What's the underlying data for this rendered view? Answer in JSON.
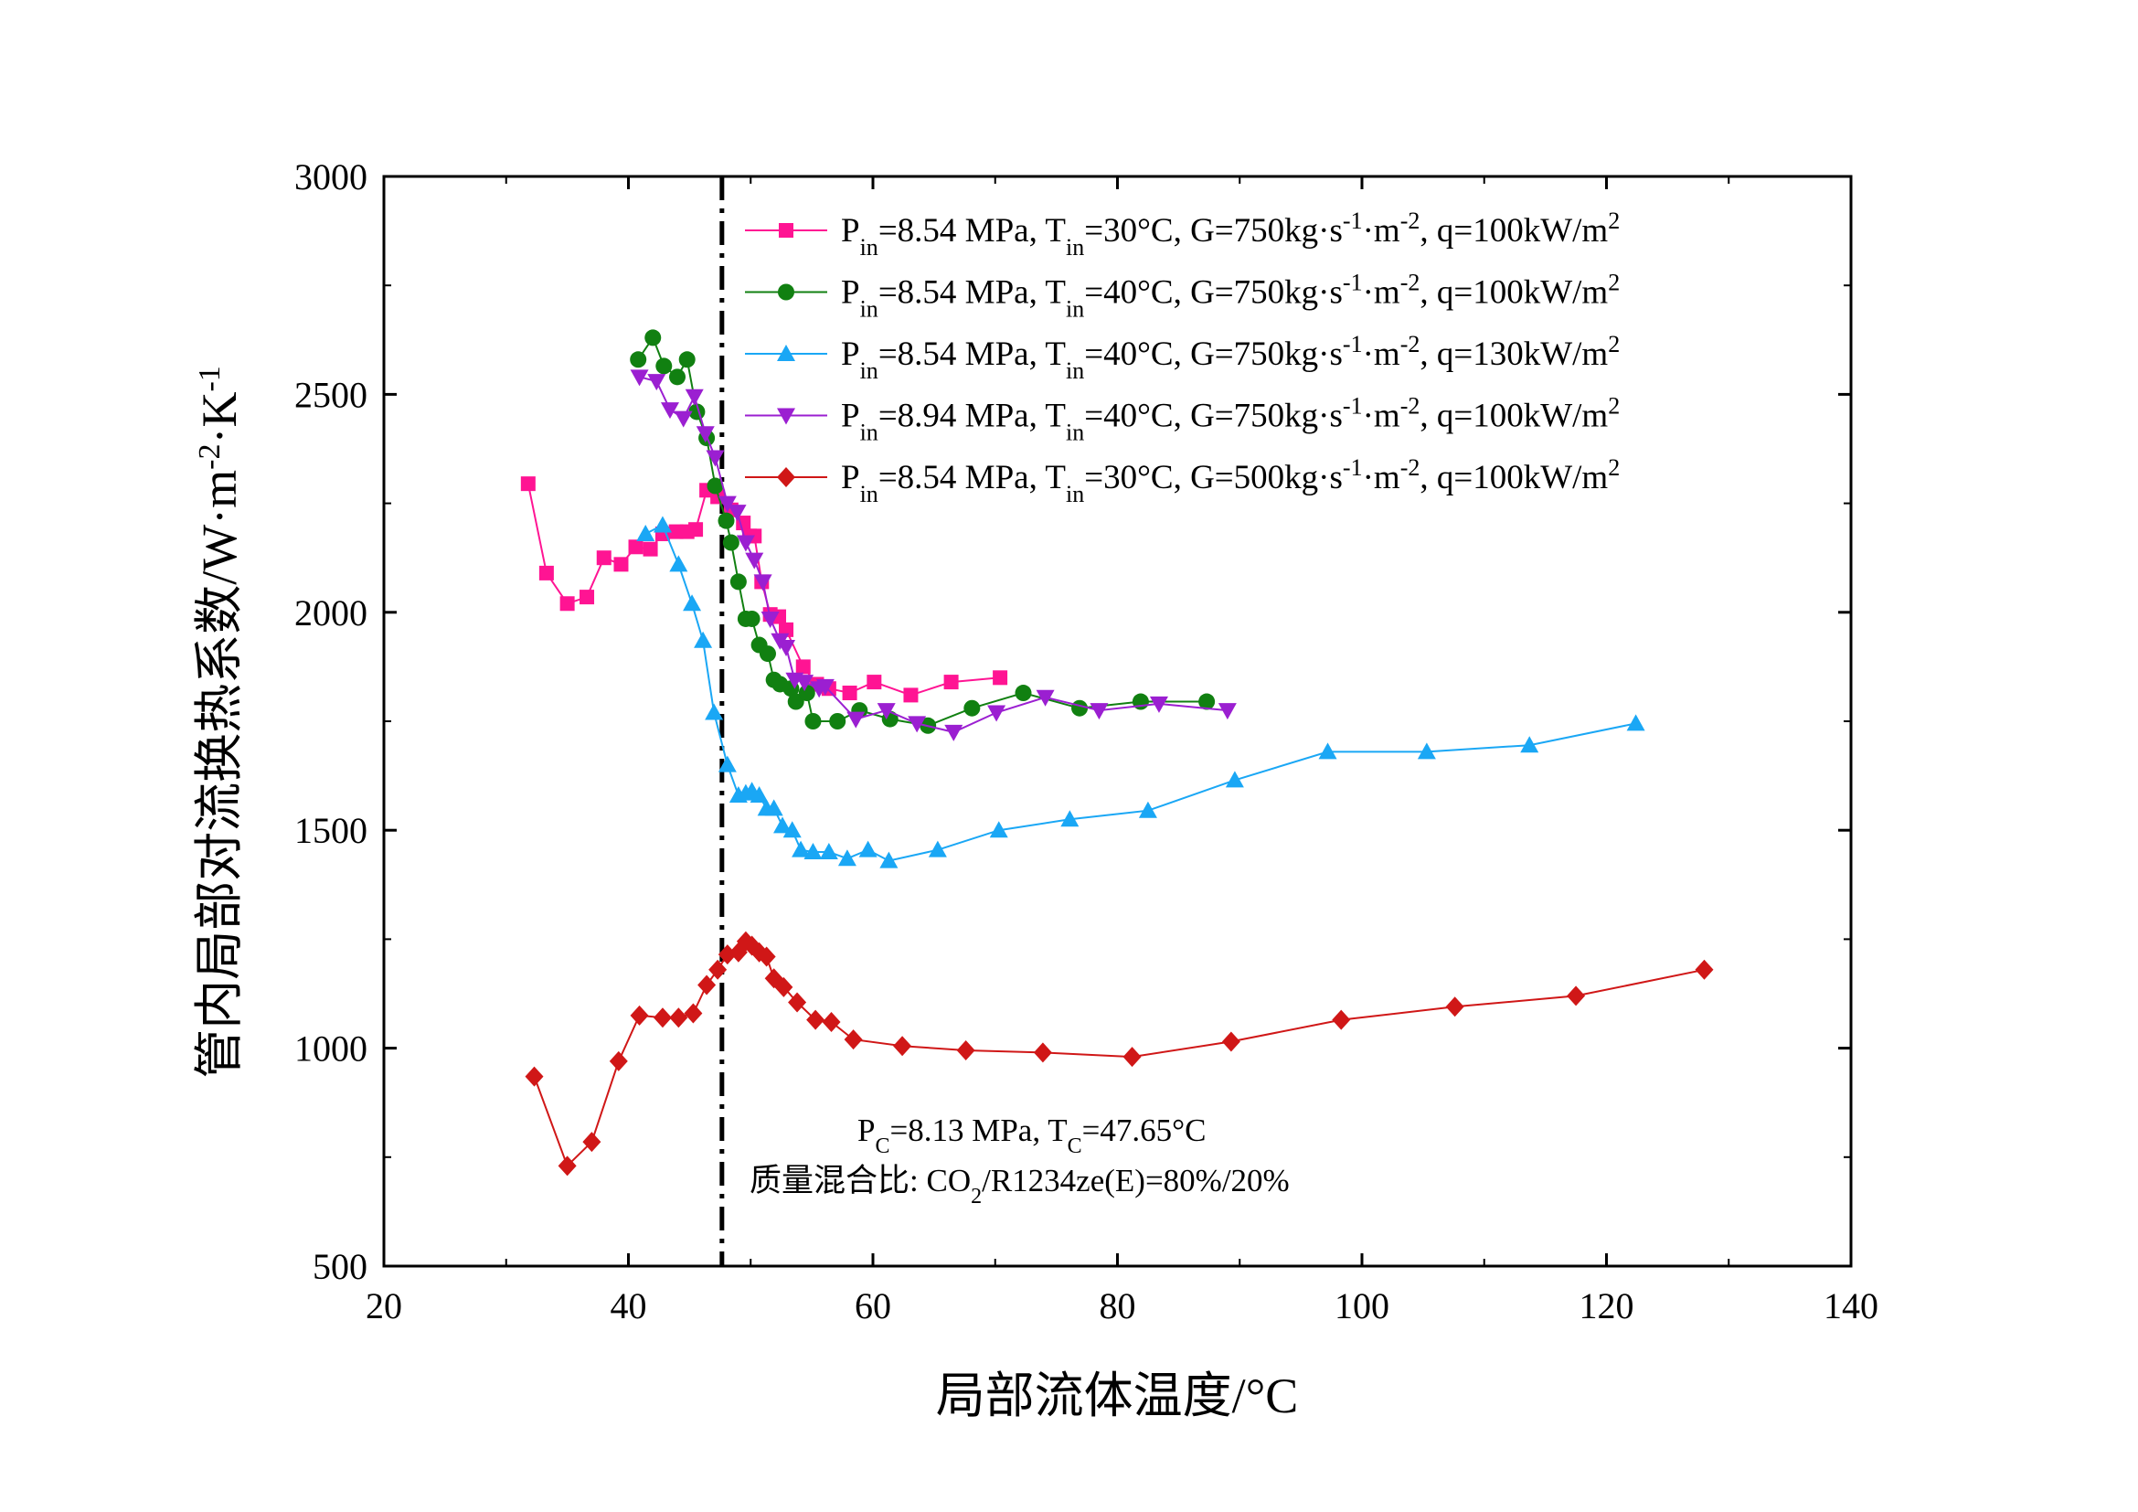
{
  "chart_data": {
    "type": "line",
    "xlabel": "局部流体温度/°C",
    "ylabel": "管内局部对流换热系数/W·m⁻²·K⁻¹",
    "xlim": [
      20,
      140
    ],
    "ylim": [
      500,
      3000
    ],
    "xticks": [
      20,
      40,
      60,
      80,
      100,
      120,
      140
    ],
    "yticks": [
      500,
      1000,
      1500,
      2000,
      2500,
      3000
    ],
    "grid": false,
    "legend_position": "top-right",
    "reference_line": {
      "x": 47.65,
      "style": "dash-dot"
    },
    "annotations": {
      "line1": "PC=8.13 MPa, TC=47.65°C",
      "line2": "质量混合比: CO2/R1234ze(E)=80%/20%"
    },
    "series": [
      {
        "name": "Pin=8.54 MPa, Tin=30°C, G=750kg·s-1·m-2, q=100kW/m2",
        "color": "#ff1493",
        "marker": "square",
        "points": [
          [
            31.8,
            2295
          ],
          [
            33.3,
            2090
          ],
          [
            35,
            2020
          ],
          [
            36.6,
            2035
          ],
          [
            38,
            2125
          ],
          [
            39.4,
            2110
          ],
          [
            40.6,
            2150
          ],
          [
            41.8,
            2145
          ],
          [
            42.8,
            2180
          ],
          [
            43.9,
            2185
          ],
          [
            44.8,
            2185
          ],
          [
            45.5,
            2190
          ],
          [
            46.4,
            2280
          ],
          [
            47.3,
            2265
          ],
          [
            48.4,
            2235
          ],
          [
            49.4,
            2205
          ],
          [
            49.9,
            2175
          ],
          [
            50.3,
            2175
          ],
          [
            50.9,
            2070
          ],
          [
            51.6,
            1995
          ],
          [
            52.3,
            1990
          ],
          [
            52.9,
            1960
          ],
          [
            54.3,
            1875
          ],
          [
            55.4,
            1835
          ],
          [
            56.4,
            1825
          ],
          [
            58.1,
            1815
          ],
          [
            60.1,
            1840
          ],
          [
            63.1,
            1810
          ],
          [
            66.4,
            1840
          ],
          [
            70.4,
            1850
          ]
        ]
      },
      {
        "name": "Pin=8.54 MPa, Tin=40°C, G=750kg·s-1·m-2, q=100kW/m2",
        "color": "#118011",
        "marker": "circle",
        "points": [
          [
            40.8,
            2580
          ],
          [
            42,
            2630
          ],
          [
            42.9,
            2565
          ],
          [
            44,
            2540
          ],
          [
            44.8,
            2580
          ],
          [
            45.6,
            2460
          ],
          [
            46.4,
            2400
          ],
          [
            47.1,
            2290
          ],
          [
            48,
            2210
          ],
          [
            48.4,
            2160
          ],
          [
            49,
            2070
          ],
          [
            49.6,
            1985
          ],
          [
            50.1,
            1985
          ],
          [
            50.7,
            1925
          ],
          [
            51.4,
            1905
          ],
          [
            51.9,
            1845
          ],
          [
            52.4,
            1835
          ],
          [
            53.3,
            1825
          ],
          [
            53.7,
            1795
          ],
          [
            54.6,
            1815
          ],
          [
            55.1,
            1750
          ],
          [
            57.1,
            1750
          ],
          [
            58.9,
            1775
          ],
          [
            61.4,
            1755
          ],
          [
            64.5,
            1740
          ],
          [
            68.1,
            1780
          ],
          [
            72.3,
            1815
          ],
          [
            76.9,
            1780
          ],
          [
            81.9,
            1795
          ],
          [
            87.3,
            1795
          ]
        ]
      },
      {
        "name": "Pin=8.54 MPa, Tin=40°C, G=750kg·s-1·m-2, q=130kW/m2",
        "color": "#1aa7f5",
        "marker": "triangle-up",
        "points": [
          [
            41.4,
            2180
          ],
          [
            42.8,
            2200
          ],
          [
            44.1,
            2110
          ],
          [
            45.2,
            2020
          ],
          [
            46.1,
            1935
          ],
          [
            47,
            1770
          ],
          [
            48.1,
            1650
          ],
          [
            49,
            1580
          ],
          [
            49.6,
            1585
          ],
          [
            50.1,
            1590
          ],
          [
            50.7,
            1580
          ],
          [
            51.3,
            1550
          ],
          [
            51.9,
            1550
          ],
          [
            52.6,
            1510
          ],
          [
            53.4,
            1500
          ],
          [
            54.1,
            1455
          ],
          [
            55.1,
            1450
          ],
          [
            56.4,
            1450
          ],
          [
            57.9,
            1435
          ],
          [
            59.6,
            1455
          ],
          [
            61.3,
            1430
          ],
          [
            65.3,
            1455
          ],
          [
            70.3,
            1500
          ],
          [
            76.1,
            1525
          ],
          [
            82.5,
            1545
          ],
          [
            89.6,
            1615
          ],
          [
            97.2,
            1680
          ],
          [
            105.3,
            1680
          ],
          [
            113.7,
            1695
          ],
          [
            122.4,
            1745
          ]
        ]
      },
      {
        "name": "Pin=8.94 MPa, Tin=40°C, G=750kg·s-1·m-2, q=100kW/m2",
        "color": "#9b1fd1",
        "marker": "triangle-down",
        "points": [
          [
            40.9,
            2540
          ],
          [
            42.3,
            2530
          ],
          [
            43.4,
            2465
          ],
          [
            44.5,
            2445
          ],
          [
            45.4,
            2495
          ],
          [
            46.3,
            2410
          ],
          [
            47.1,
            2355
          ],
          [
            48.1,
            2250
          ],
          [
            48.9,
            2230
          ],
          [
            49.6,
            2160
          ],
          [
            50.3,
            2120
          ],
          [
            51,
            2070
          ],
          [
            51.6,
            1985
          ],
          [
            52.4,
            1935
          ],
          [
            52.9,
            1920
          ],
          [
            53.6,
            1845
          ],
          [
            54.4,
            1840
          ],
          [
            55.6,
            1825
          ],
          [
            56.1,
            1830
          ],
          [
            58.6,
            1755
          ],
          [
            61.1,
            1775
          ],
          [
            63.6,
            1745
          ],
          [
            66.6,
            1725
          ],
          [
            70.1,
            1770
          ],
          [
            74.1,
            1805
          ],
          [
            78.5,
            1775
          ],
          [
            83.4,
            1790
          ],
          [
            89,
            1775
          ]
        ]
      },
      {
        "name": "Pin=8.54 MPa, Tin=30°C, G=500kg·s-1·m-2, q=100kW/m2",
        "color": "#d01717",
        "marker": "diamond",
        "points": [
          [
            32.3,
            935
          ],
          [
            35,
            730
          ],
          [
            37,
            785
          ],
          [
            39.2,
            970
          ],
          [
            40.9,
            1075
          ],
          [
            42.8,
            1070
          ],
          [
            44.1,
            1070
          ],
          [
            45.3,
            1080
          ],
          [
            46.4,
            1145
          ],
          [
            47.3,
            1180
          ],
          [
            48.1,
            1215
          ],
          [
            49,
            1220
          ],
          [
            49.6,
            1245
          ],
          [
            50.1,
            1235
          ],
          [
            50.7,
            1220
          ],
          [
            51.3,
            1210
          ],
          [
            51.9,
            1160
          ],
          [
            52.7,
            1140
          ],
          [
            53.8,
            1105
          ],
          [
            55.3,
            1065
          ],
          [
            56.6,
            1060
          ],
          [
            58.4,
            1020
          ],
          [
            62.4,
            1005
          ],
          [
            67.6,
            995
          ],
          [
            73.9,
            990
          ],
          [
            81.2,
            980
          ],
          [
            89.3,
            1015
          ],
          [
            98.3,
            1065
          ],
          [
            107.6,
            1095
          ],
          [
            117.5,
            1120
          ],
          [
            128,
            1180
          ]
        ]
      }
    ]
  }
}
